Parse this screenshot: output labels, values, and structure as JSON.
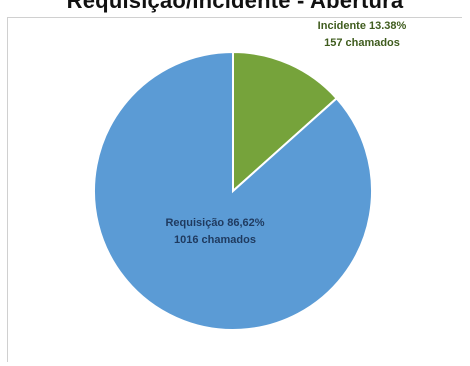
{
  "chart_data": {
    "type": "pie",
    "title": "Requisição/Incidente - Abertura",
    "slices": [
      {
        "name": "Incidente",
        "percent_label": "13.38%",
        "count_label": "157 chamados",
        "value": 157,
        "color": "#76a33b",
        "label_color": "#3f5c1e"
      },
      {
        "name": "Requisição",
        "percent_label": "86,62%",
        "count_label": "1016 chamados",
        "value": 1016,
        "color": "#5b9bd5",
        "label_color": "#1f3a5f"
      }
    ],
    "legend": "none"
  }
}
